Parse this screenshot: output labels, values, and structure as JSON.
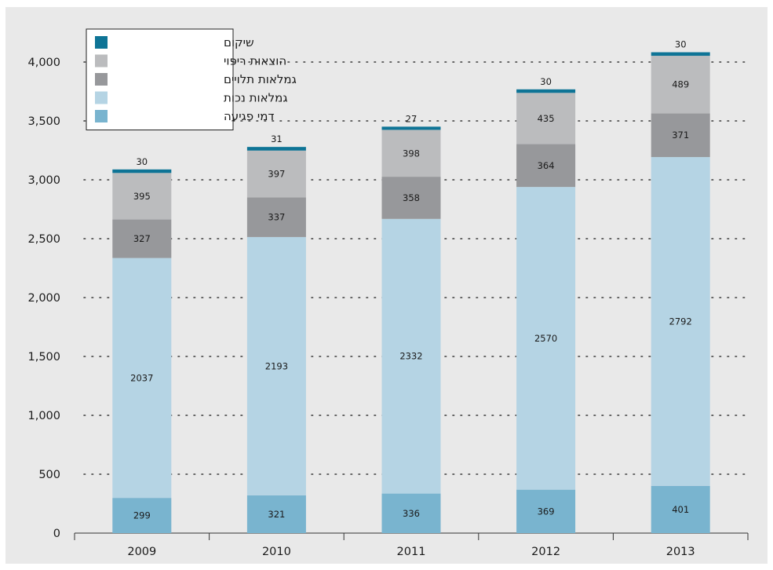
{
  "chart_data": {
    "type": "bar",
    "stacked": true,
    "categories": [
      "2009",
      "2010",
      "2011",
      "2012",
      "2013"
    ],
    "series": [
      {
        "name": "דמי פגיעה",
        "color": "#79b4cf",
        "values": [
          299,
          321,
          336,
          369,
          401
        ]
      },
      {
        "name": "גמלאות נכות",
        "color": "#b5d4e4",
        "values": [
          2037,
          2193,
          2332,
          2570,
          2792
        ]
      },
      {
        "name": "גמלאות תלויים",
        "color": "#97989b",
        "values": [
          327,
          337,
          358,
          364,
          371
        ]
      },
      {
        "name": "הוצאות ריפוי",
        "color": "#bbbcbe",
        "values": [
          395,
          397,
          398,
          435,
          489
        ]
      },
      {
        "name": "שיקום",
        "color": "#0e7496",
        "values": [
          30,
          31,
          27,
          30,
          30
        ]
      }
    ],
    "y_ticks": [
      "0",
      "500",
      "1,000",
      "1,500",
      "2,000",
      "2,500",
      "3,000",
      "3,500",
      "4,000"
    ],
    "ylim": [
      0,
      4000
    ],
    "gridlines": "dotted",
    "legend": {
      "position": "top-left",
      "order": [
        "שיקום",
        "הוצאות ריפוי",
        "גמלאות תלויים",
        "גמלאות נכות",
        "דמי פגיעה"
      ]
    },
    "title": "",
    "xlabel": "",
    "ylabel": ""
  }
}
